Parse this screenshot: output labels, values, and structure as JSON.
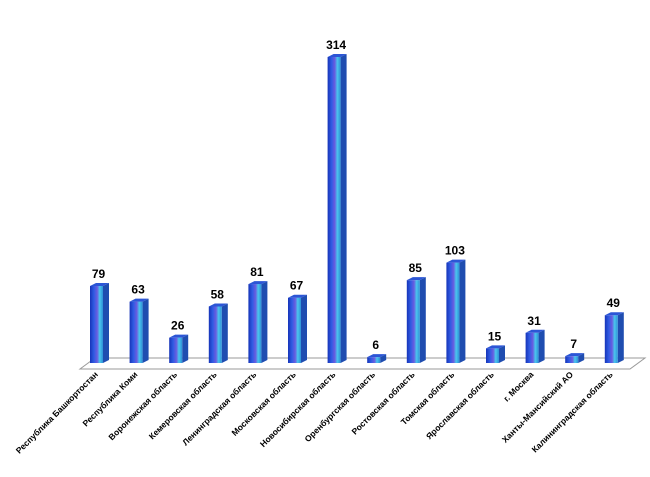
{
  "chart_data": {
    "type": "bar",
    "title": "",
    "xlabel": "",
    "ylabel": "",
    "grid": false,
    "legend": "none",
    "ylim": [
      0,
      320
    ],
    "categories": [
      "Республика Башкортостан",
      "Республика Коми",
      "Воронежская область",
      "Кемеровская область",
      "Ленинградская область",
      "Московская область",
      "Новосибирская область",
      "Оренбургская область",
      "Ростовская область",
      "Томская область",
      "Ярославская область",
      "г. Москва",
      "Ханты-Мансийский АО",
      "Калининградская область"
    ],
    "values": [
      79,
      63,
      26,
      58,
      81,
      67,
      314,
      6,
      85,
      103,
      15,
      31,
      7,
      49
    ],
    "colors": {
      "bar_dark": "#1a3fc4",
      "bar_mid": "#3a66e6",
      "bar_light": "#49c6ee",
      "bar_top": "#2c56d6",
      "bar_side": "#1f4db0",
      "floor_stroke": "#9a9a9a"
    }
  }
}
